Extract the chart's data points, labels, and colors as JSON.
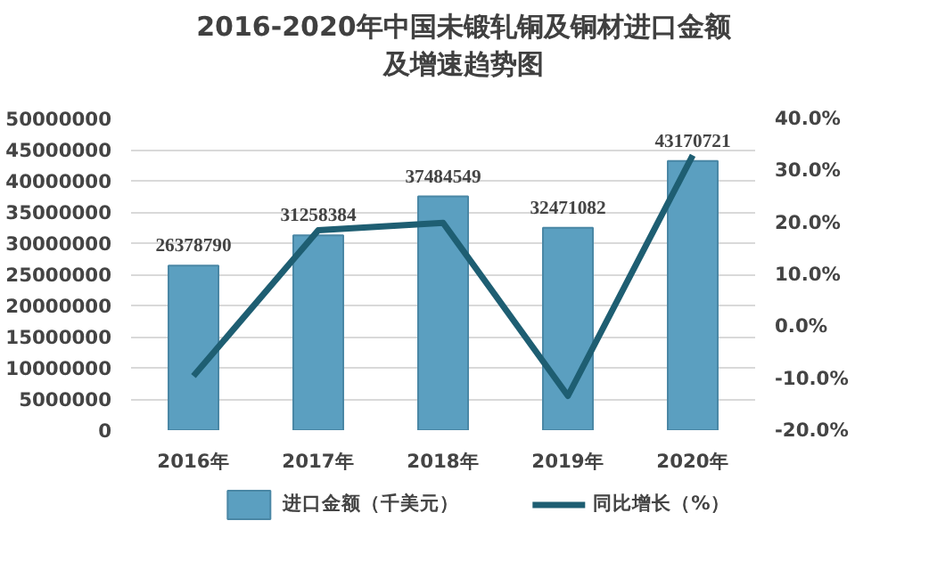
{
  "chart_data": {
    "type": "bar",
    "title": "2016-2020年中国未锻轧铜及铜材进口金额及增速趋势图",
    "categories": [
      "2016年",
      "2017年",
      "2018年",
      "2019年",
      "2020年"
    ],
    "series": [
      {
        "name": "进口金额（千美元）",
        "color": "#5b9fc0",
        "values": [
          26378790,
          31258384,
          37484549,
          32471082,
          43170721
        ],
        "value_labels": [
          "26378790",
          "31258384",
          "37484549",
          "32471082",
          "43170721"
        ]
      },
      {
        "name": "同比增长（%）",
        "type": "line",
        "axis": "y2",
        "color": "#1e5e72",
        "values": [
          -9.6,
          18.5,
          19.9,
          -13.4,
          32.9
        ]
      }
    ],
    "ylim": [
      0,
      50000000
    ],
    "yticks": [
      0,
      5000000,
      10000000,
      15000000,
      20000000,
      25000000,
      30000000,
      35000000,
      40000000,
      45000000,
      50000000
    ],
    "y2lim": [
      -20,
      40
    ],
    "y2ticks": [
      {
        "value": -20,
        "label": "-20.0%"
      },
      {
        "value": -10,
        "label": "-10.0%"
      },
      {
        "value": 0,
        "label": "0.0%"
      },
      {
        "value": 10,
        "label": "10.0%"
      },
      {
        "value": 20,
        "label": "20.0%"
      },
      {
        "value": 30,
        "label": "30.0%"
      },
      {
        "value": 40,
        "label": "40.0%"
      }
    ],
    "grid": "y",
    "legend": "bottom",
    "marker": "none",
    "line_style": "solid"
  }
}
